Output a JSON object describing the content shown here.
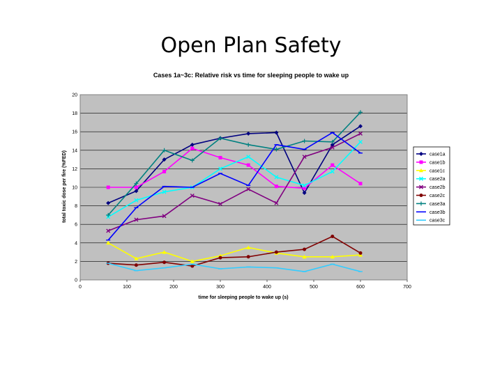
{
  "slide": {
    "title": "Open Plan Safety"
  },
  "chart_data": {
    "type": "line",
    "title": "Cases 1a~3c: Relative risk vs time for sleeping people to wake up",
    "xlabel": "time for sleeping people to wake up (s)",
    "ylabel": "total toxic dose per fire (%FED)",
    "xlim": [
      0,
      700
    ],
    "ylim": [
      0,
      20
    ],
    "xticks": [
      0,
      100,
      200,
      300,
      400,
      500,
      600,
      700
    ],
    "yticks": [
      0,
      2,
      4,
      6,
      8,
      10,
      12,
      14,
      16,
      18,
      20
    ],
    "grid": true,
    "legend": "right",
    "x": [
      60,
      120,
      180,
      240,
      300,
      360,
      420,
      480,
      540,
      600
    ],
    "series": [
      {
        "name": "case1a",
        "color": "#000080",
        "marker": "diamond",
        "values": [
          8.3,
          9.6,
          13.0,
          14.6,
          15.3,
          15.8,
          15.9,
          9.4,
          14.6,
          16.6
        ]
      },
      {
        "name": "case1b",
        "color": "#ff00ff",
        "marker": "square",
        "values": [
          10.0,
          10.0,
          11.7,
          14.2,
          13.2,
          12.4,
          10.1,
          9.9,
          12.4,
          10.4
        ]
      },
      {
        "name": "case1c",
        "color": "#ffff00",
        "marker": "triangle",
        "values": [
          4.0,
          2.3,
          3.0,
          2.0,
          2.6,
          3.5,
          2.9,
          2.5,
          2.5,
          2.7
        ]
      },
      {
        "name": "case2a",
        "color": "#00ffff",
        "marker": "x",
        "values": [
          6.8,
          8.6,
          9.5,
          10.0,
          12.0,
          13.3,
          11.1,
          10.2,
          11.7,
          14.9
        ]
      },
      {
        "name": "case2b",
        "color": "#800080",
        "marker": "x",
        "values": [
          5.3,
          6.5,
          6.9,
          9.1,
          8.2,
          9.8,
          8.3,
          13.3,
          14.3,
          15.8
        ]
      },
      {
        "name": "case2c",
        "color": "#800000",
        "marker": "circle",
        "values": [
          1.8,
          1.6,
          1.9,
          1.5,
          2.4,
          2.5,
          3.0,
          3.3,
          4.7,
          2.9
        ]
      },
      {
        "name": "case3a",
        "color": "#008080",
        "marker": "plus",
        "values": [
          7.0,
          10.4,
          14.0,
          12.9,
          15.3,
          14.6,
          14.1,
          15.0,
          14.9,
          18.1
        ]
      },
      {
        "name": "case3b",
        "color": "#0000ff",
        "marker": "dash",
        "values": [
          4.3,
          7.8,
          10.1,
          10.0,
          11.5,
          10.2,
          14.6,
          14.1,
          15.9,
          13.7
        ]
      },
      {
        "name": "case3c",
        "color": "#33ccff",
        "marker": "dash",
        "values": [
          1.8,
          1.0,
          1.3,
          1.7,
          1.2,
          1.4,
          1.3,
          0.9,
          1.7,
          0.9
        ]
      }
    ]
  }
}
